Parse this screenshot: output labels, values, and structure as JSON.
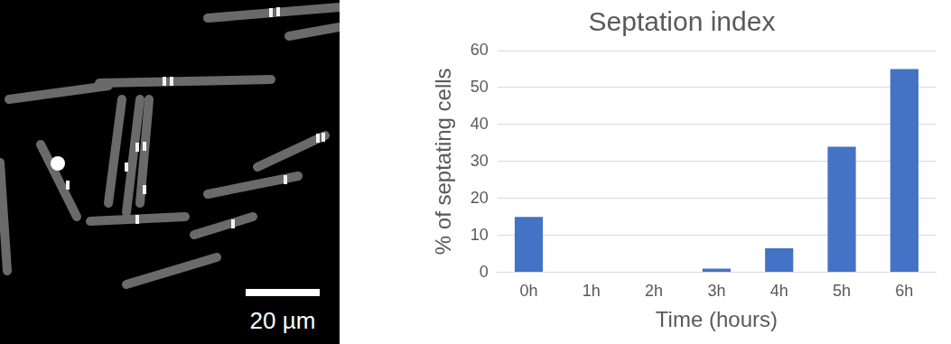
{
  "image_panel": {
    "scale_bar_label": "20 µm"
  },
  "chart_data": {
    "type": "bar",
    "title": "Septation index",
    "x_label": "Time (hours)",
    "y_label": "% of septating cells",
    "categories": [
      "0h",
      "1h",
      "2h",
      "3h",
      "4h",
      "5h",
      "6h"
    ],
    "values": [
      15,
      0,
      0,
      1,
      6.5,
      34,
      55
    ],
    "color": "#4472c4",
    "ylim": [
      0,
      60
    ],
    "yticks": [
      0,
      10,
      20,
      30,
      40,
      50,
      60
    ],
    "grid": true
  }
}
